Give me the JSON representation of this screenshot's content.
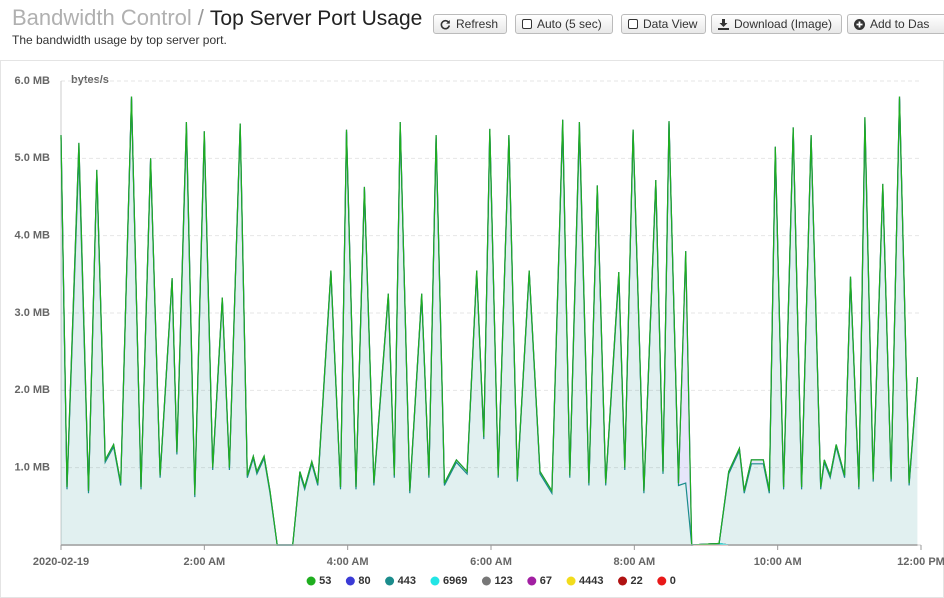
{
  "header": {
    "breadcrumb": "Bandwidth Control",
    "separator": "/",
    "title": "Top Server Port Usage",
    "subtitle": "The bandwidth usage by top server port.",
    "buttons": [
      "Refresh",
      "Auto (5 sec)",
      "Data View",
      "Download (Image)",
      "Add to Das"
    ]
  },
  "chart_data": {
    "type": "area",
    "stacked": true,
    "y_axis_label": "bytes/s",
    "grid": true,
    "legend": "bottom",
    "x": [
      "2020-02-19 00:00",
      "2020-02-19 00:05",
      "2020-02-19 00:15",
      "2020-02-19 00:23",
      "2020-02-19 00:30",
      "2020-02-19 00:37",
      "2020-02-19 00:44",
      "2020-02-19 00:50",
      "2020-02-19 00:59",
      "2020-02-19 01:07",
      "2020-02-19 01:15",
      "2020-02-19 01:23",
      "2020-02-19 01:33",
      "2020-02-19 01:37",
      "2020-02-19 01:45",
      "2020-02-19 01:52",
      "2020-02-19 02:00",
      "2020-02-19 02:07",
      "2020-02-19 02:15",
      "2020-02-19 02:21",
      "2020-02-19 02:30",
      "2020-02-19 02:36",
      "2020-02-19 02:41",
      "2020-02-19 02:44",
      "2020-02-19 02:50",
      "2020-02-19 02:55",
      "2020-02-19 03:01",
      "2020-02-19 03:14",
      "2020-02-19 03:20",
      "2020-02-19 03:24",
      "2020-02-19 03:30",
      "2020-02-19 03:35",
      "2020-02-19 03:46",
      "2020-02-19 03:54",
      "2020-02-19 03:59",
      "2020-02-19 04:07",
      "2020-02-19 04:14",
      "2020-02-19 04:22",
      "2020-02-19 04:34",
      "2020-02-19 04:39",
      "2020-02-19 04:44",
      "2020-02-19 04:52",
      "2020-02-19 05:02",
      "2020-02-19 05:08",
      "2020-02-19 05:14",
      "2020-02-19 05:21",
      "2020-02-19 05:31",
      "2020-02-19 05:40",
      "2020-02-19 05:48",
      "2020-02-19 05:54",
      "2020-02-19 05:59",
      "2020-02-19 06:06",
      "2020-02-19 06:15",
      "2020-02-19 06:22",
      "2020-02-19 06:32",
      "2020-02-19 06:41",
      "2020-02-19 06:51",
      "2020-02-19 07:00",
      "2020-02-19 07:06",
      "2020-02-19 07:14",
      "2020-02-19 07:22",
      "2020-02-19 07:29",
      "2020-02-19 07:36",
      "2020-02-19 07:47",
      "2020-02-19 07:52",
      "2020-02-19 07:59",
      "2020-02-19 08:08",
      "2020-02-19 08:18",
      "2020-02-19 08:24",
      "2020-02-19 08:29",
      "2020-02-19 08:37",
      "2020-02-19 08:43",
      "2020-02-19 08:48",
      "2020-02-19 09:11",
      "2020-02-19 09:19",
      "2020-02-19 09:28",
      "2020-02-19 09:32",
      "2020-02-19 09:38",
      "2020-02-19 09:48",
      "2020-02-19 09:53",
      "2020-02-19 09:58",
      "2020-02-19 10:05",
      "2020-02-19 10:13",
      "2020-02-19 10:20",
      "2020-02-19 10:28",
      "2020-02-19 10:36",
      "2020-02-19 10:39",
      "2020-02-19 10:44",
      "2020-02-19 10:49",
      "2020-02-19 10:56",
      "2020-02-19 11:01",
      "2020-02-19 11:08",
      "2020-02-19 11:13",
      "2020-02-19 11:20",
      "2020-02-19 11:28",
      "2020-02-19 11:35",
      "2020-02-19 11:42",
      "2020-02-19 11:50",
      "2020-02-19 11:57"
    ],
    "xlim": [
      "2020-02-19 00:00",
      "2020-02-19 12:00"
    ],
    "xticks": [
      {
        "value": "2020-02-19 00:00",
        "label": "2020-02-19"
      },
      {
        "value": "2020-02-19 02:00",
        "label": "2:00 AM"
      },
      {
        "value": "2020-02-19 04:00",
        "label": "4:00 AM"
      },
      {
        "value": "2020-02-19 06:00",
        "label": "6:00 AM"
      },
      {
        "value": "2020-02-19 08:00",
        "label": "8:00 AM"
      },
      {
        "value": "2020-02-19 10:00",
        "label": "10:00 AM"
      },
      {
        "value": "2020-02-19 12:00",
        "label": "12:00 PM"
      }
    ],
    "ylim": [
      0,
      6
    ],
    "yticks": [
      {
        "value": 1,
        "label": "1.0 MB"
      },
      {
        "value": 2,
        "label": "2.0 MB"
      },
      {
        "value": 3,
        "label": "3.0 MB"
      },
      {
        "value": 4,
        "label": "4.0 MB"
      },
      {
        "value": 5,
        "label": "5.0 MB"
      },
      {
        "value": 6,
        "label": "6.0 MB"
      }
    ],
    "series": [
      {
        "name": "53",
        "color": "#1fae1f",
        "values": [
          0,
          0,
          0,
          0,
          0,
          0,
          0,
          0,
          0,
          0,
          0,
          0,
          0,
          0,
          0,
          0,
          0,
          0,
          0,
          0,
          0,
          0,
          0,
          0,
          0,
          0,
          0,
          0,
          0,
          0,
          0,
          0,
          0,
          0,
          0,
          0,
          0,
          0,
          0,
          0,
          0,
          0,
          0,
          0,
          0,
          0,
          0,
          0,
          0,
          0,
          0,
          0,
          0,
          0,
          0,
          0,
          0,
          0,
          0,
          0,
          0,
          0,
          0,
          0,
          0,
          0,
          0,
          0,
          0,
          0,
          0,
          0,
          0,
          0,
          0,
          0,
          0,
          0,
          0,
          0,
          0,
          0,
          0,
          0,
          0,
          0,
          0,
          0,
          0,
          0,
          0,
          0,
          0,
          0,
          0,
          0,
          0,
          0,
          0
        ]
      },
      {
        "name": "80",
        "color": "#3b3bd6",
        "values": [
          0.03,
          0.03,
          0.15,
          0.03,
          0.03,
          0.03,
          0.03,
          0.03,
          0.03,
          0.03,
          0.03,
          0.03,
          0.03,
          0.03,
          0.08,
          0.03,
          0.05,
          0.03,
          0.03,
          0.03,
          0.03,
          0.03,
          0.03,
          0.03,
          0.03,
          0.03,
          0,
          0,
          0.03,
          0.03,
          0.03,
          0.03,
          0.03,
          0.03,
          0.03,
          0.03,
          0.03,
          0.03,
          0.03,
          0.03,
          0.03,
          0.03,
          0.03,
          0.03,
          0.03,
          0.03,
          0.03,
          0.03,
          0.03,
          0.03,
          0.03,
          0.03,
          0.03,
          0.03,
          0.03,
          0.03,
          0.03,
          0.05,
          0.03,
          0.1,
          0.03,
          0.03,
          0.03,
          0.05,
          0.03,
          0.03,
          0.03,
          0.03,
          0.03,
          0.03,
          0.03,
          3.0,
          0,
          0,
          0.03,
          0.03,
          0.03,
          0.05,
          0.05,
          0.03,
          0.03,
          0.03,
          0.03,
          0.03,
          0.03,
          0.03,
          0.03,
          0.03,
          0.03,
          0.03,
          0.03,
          0.03,
          0.08,
          0.03,
          0.03,
          0.03,
          0.03,
          0.03,
          0.03
        ]
      },
      {
        "name": "443",
        "color": "#1b8c8c",
        "values": [
          5.27,
          0.72,
          5.05,
          0.67,
          4.82,
          1.07,
          1.27,
          0.77,
          5.77,
          0.72,
          4.97,
          0.87,
          3.42,
          1.17,
          5.39,
          0.62,
          5.3,
          0.97,
          3.17,
          0.97,
          5.42,
          0.87,
          1.12,
          0.92,
          1.12,
          0.67,
          0,
          0,
          0.92,
          0.72,
          1.05,
          0.77,
          3.52,
          0.72,
          5.34,
          0.72,
          4.6,
          0.77,
          3.22,
          0.87,
          5.44,
          0.67,
          3.22,
          0.87,
          5.27,
          0.77,
          1.07,
          0.92,
          3.52,
          1.37,
          5.35,
          0.87,
          5.27,
          0.82,
          3.52,
          0.92,
          0.67,
          5.45,
          0.87,
          5.37,
          0.77,
          4.62,
          0.77,
          3.48,
          0.97,
          5.34,
          0.67,
          4.69,
          0.92,
          5.45,
          0.77,
          0.8,
          0,
          0,
          0.92,
          1.22,
          0.67,
          1.05,
          1.05,
          0.67,
          5.12,
          0.72,
          5.37,
          0.72,
          5.27,
          0.72,
          1.07,
          0.87,
          1.27,
          0.87,
          3.44,
          0.72,
          5.45,
          0.82,
          4.64,
          0.82,
          5.77,
          0.77,
          2.14
        ]
      },
      {
        "name": "6969",
        "color": "#22e5e5",
        "values": [
          0,
          0,
          0,
          0,
          0,
          0,
          0,
          0,
          0,
          0,
          0,
          0,
          0,
          0,
          0,
          0,
          0,
          0,
          0,
          0,
          0,
          0,
          0,
          0,
          0,
          0,
          0,
          0,
          0,
          0,
          0,
          0,
          0,
          0,
          0,
          0,
          0,
          0,
          0,
          0,
          0,
          0,
          0,
          0,
          0,
          0,
          0,
          0,
          0,
          0,
          0,
          0,
          0,
          0,
          0,
          0,
          0,
          0,
          0,
          0,
          0,
          0,
          0,
          0,
          0,
          0,
          0,
          0,
          0,
          0,
          0,
          0,
          0,
          0,
          0,
          0,
          0,
          0,
          0,
          0,
          0,
          0,
          0,
          0,
          0,
          0,
          0,
          0,
          0,
          0,
          0,
          0,
          0,
          0,
          0,
          0,
          0,
          0,
          0
        ]
      },
      {
        "name": "123",
        "color": "#777777",
        "values": [
          0,
          0,
          0,
          0,
          0,
          0,
          0,
          0,
          0,
          0,
          0,
          0,
          0,
          0,
          0,
          0,
          0,
          0,
          0,
          0,
          0,
          0,
          0,
          0,
          0,
          0,
          0,
          0,
          0,
          0,
          0,
          0,
          0,
          0,
          0,
          0,
          0,
          0,
          0,
          0,
          0,
          0,
          0,
          0,
          0,
          0,
          0,
          0,
          0,
          0,
          0,
          0,
          0,
          0,
          0,
          0,
          0,
          0,
          0,
          0,
          0,
          0,
          0,
          0,
          0,
          0,
          0,
          0,
          0,
          0,
          0,
          0,
          0,
          0,
          0,
          0,
          0,
          0,
          0,
          0,
          0,
          0,
          0,
          0,
          0,
          0,
          0,
          0,
          0,
          0,
          0,
          0,
          0,
          0,
          0,
          0,
          0,
          0,
          0
        ]
      },
      {
        "name": "67",
        "color": "#a21fa2",
        "values": [
          0,
          0,
          0,
          0,
          0,
          0,
          0,
          0,
          0,
          0,
          0,
          0,
          0,
          0,
          0,
          0,
          0,
          0,
          0,
          0,
          0,
          0,
          0,
          0,
          0,
          0,
          0,
          0,
          0,
          0,
          0,
          0,
          0,
          0,
          0,
          0,
          0,
          0,
          0,
          0,
          0,
          0,
          0,
          0,
          0,
          0,
          0,
          0,
          0,
          0,
          0,
          0,
          0,
          0,
          0,
          0,
          0,
          0,
          0,
          0,
          0,
          0,
          0,
          0,
          0,
          0,
          0,
          0,
          0,
          0,
          0,
          0,
          0,
          0,
          0,
          0,
          0,
          0,
          0,
          0,
          0,
          0,
          0,
          0,
          0,
          0,
          0,
          0,
          0,
          0,
          0,
          0,
          0,
          0,
          0,
          0,
          0,
          0,
          0
        ]
      },
      {
        "name": "4443",
        "color": "#f2dc1c",
        "values": [
          0,
          0,
          0,
          0,
          0,
          0,
          0,
          0,
          0,
          0,
          0,
          0,
          0,
          0,
          0,
          0,
          0,
          0,
          0,
          0,
          0,
          0,
          0,
          0,
          0,
          0,
          0,
          0,
          0,
          0,
          0,
          0,
          0,
          0,
          0,
          0,
          0,
          0,
          0,
          0,
          0,
          0,
          0,
          0,
          0,
          0,
          0,
          0,
          0,
          0,
          0,
          0,
          0,
          0,
          0,
          0,
          0,
          0,
          0,
          0,
          0,
          0,
          0,
          0,
          0,
          0,
          0,
          0,
          0,
          0,
          0,
          0,
          0,
          0,
          0,
          0,
          0,
          0,
          0,
          0,
          0,
          0,
          0,
          0,
          0,
          0,
          0,
          0,
          0,
          0,
          0,
          0,
          0,
          0,
          0,
          0,
          0,
          0,
          0
        ]
      },
      {
        "name": "22",
        "color": "#b01212",
        "values": [
          0,
          0,
          0,
          0,
          0,
          0,
          0,
          0,
          0,
          0,
          0,
          0,
          0,
          0,
          0,
          0,
          0,
          0,
          0,
          0,
          0,
          0,
          0,
          0,
          0,
          0,
          0,
          0,
          0,
          0,
          0,
          0,
          0,
          0,
          0,
          0,
          0,
          0,
          0,
          0,
          0,
          0,
          0,
          0,
          0,
          0,
          0,
          0,
          0,
          0,
          0,
          0,
          0,
          0,
          0,
          0,
          0,
          0,
          0,
          0,
          0,
          0,
          0,
          0,
          0,
          0,
          0,
          0,
          0,
          0,
          0,
          0,
          0,
          0.02,
          0,
          0,
          0,
          0,
          0,
          0,
          0,
          0,
          0,
          0,
          0,
          0,
          0,
          0,
          0,
          0,
          0,
          0,
          0,
          0,
          0,
          0,
          0,
          0,
          0
        ]
      },
      {
        "name": "0",
        "color": "#e81818",
        "values": [
          0,
          0,
          0,
          0,
          0,
          0,
          0,
          0,
          0,
          0,
          0,
          0,
          0,
          0,
          0,
          0,
          0,
          0,
          0,
          0,
          0,
          0,
          0,
          0,
          0,
          0,
          0,
          0,
          0,
          0,
          0,
          0,
          0,
          0,
          0,
          0,
          0,
          0,
          0,
          0,
          0,
          0,
          0,
          0,
          0,
          0,
          0,
          0,
          0,
          0,
          0,
          0,
          0,
          0,
          0,
          0,
          0,
          0,
          0,
          0,
          0,
          0,
          0,
          0,
          0,
          0,
          0,
          0,
          0,
          0,
          0,
          0,
          0,
          0,
          0,
          0,
          0,
          0,
          0,
          0,
          0,
          0,
          0,
          0,
          0,
          0,
          0,
          0,
          0,
          0,
          0,
          0,
          0,
          0,
          0,
          0,
          0,
          0,
          0
        ]
      }
    ]
  }
}
